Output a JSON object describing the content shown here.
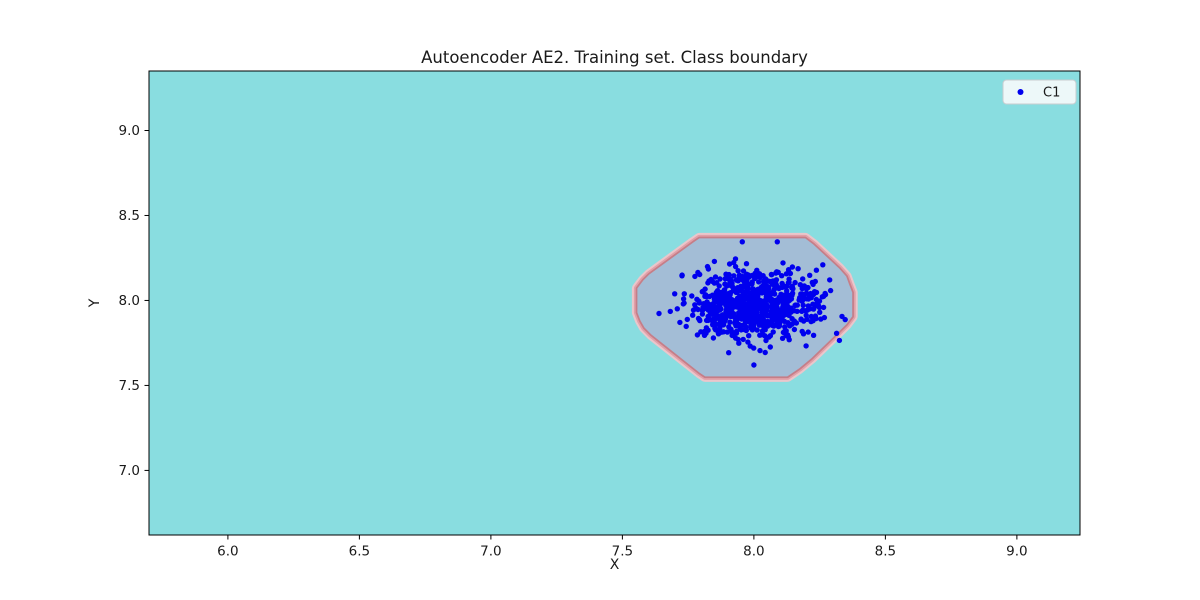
{
  "figure": {
    "background": "#ffffff"
  },
  "chart_data": {
    "type": "scatter",
    "title": "Autoencoder AE2. Training set. Class boundary",
    "xlabel": "X",
    "ylabel": "Y",
    "xlim": [
      5.7,
      9.24
    ],
    "ylim": [
      6.62,
      9.35
    ],
    "xticks": [
      6.0,
      6.5,
      7.0,
      7.5,
      8.0,
      8.5,
      9.0
    ],
    "yticks": [
      7.0,
      7.5,
      8.0,
      8.5,
      9.0
    ],
    "grid": false,
    "outside_region_color": "#89dde0",
    "axes_frame_color": "#000000",
    "class_region": {
      "fill": "#a3bdd6",
      "boundary_band_colors": [
        "#eac6cb",
        "#e1a0a9",
        "#c57e88"
      ],
      "polygon": [
        [
          7.793,
          8.365
        ],
        [
          8.195,
          8.365
        ],
        [
          8.226,
          8.329
        ],
        [
          8.324,
          8.188
        ],
        [
          8.351,
          8.141
        ],
        [
          8.362,
          8.094
        ],
        [
          8.374,
          8.047
        ],
        [
          8.374,
          7.906
        ],
        [
          8.351,
          7.859
        ],
        [
          8.324,
          7.818
        ],
        [
          8.218,
          7.659
        ],
        [
          8.172,
          7.6
        ],
        [
          8.127,
          7.553
        ],
        [
          7.815,
          7.553
        ],
        [
          7.793,
          7.576
        ],
        [
          7.61,
          7.8
        ],
        [
          7.584,
          7.841
        ],
        [
          7.569,
          7.882
        ],
        [
          7.557,
          7.929
        ],
        [
          7.557,
          8.071
        ],
        [
          7.58,
          8.118
        ],
        [
          7.603,
          8.153
        ],
        [
          7.77,
          8.341
        ]
      ]
    },
    "series": [
      {
        "name": "C1",
        "marker": "dot",
        "marker_color": "#0000ee",
        "marker_radius_px": 2.7,
        "distribution": {
          "type": "gaussian-cluster",
          "n": 800,
          "center": [
            7.995,
            7.975
          ],
          "std": [
            0.122,
            0.102
          ],
          "clip_sigma": 3.0,
          "seed": 42
        },
        "x_extent": [
          7.64,
          8.36
        ],
        "y_extent": [
          7.6,
          8.35
        ],
        "notable_points": [
          [
            7.956,
            8.345
          ],
          [
            8.089,
            8.345
          ],
          [
            8.262,
            8.21
          ],
          [
            8.0,
            7.62
          ]
        ]
      }
    ],
    "legend": {
      "position": "upper right",
      "face_color": "#edf8f9",
      "edge_color": "#c9cdd0",
      "entries": [
        {
          "label": "C1",
          "marker_color": "#0000ee"
        }
      ]
    }
  }
}
